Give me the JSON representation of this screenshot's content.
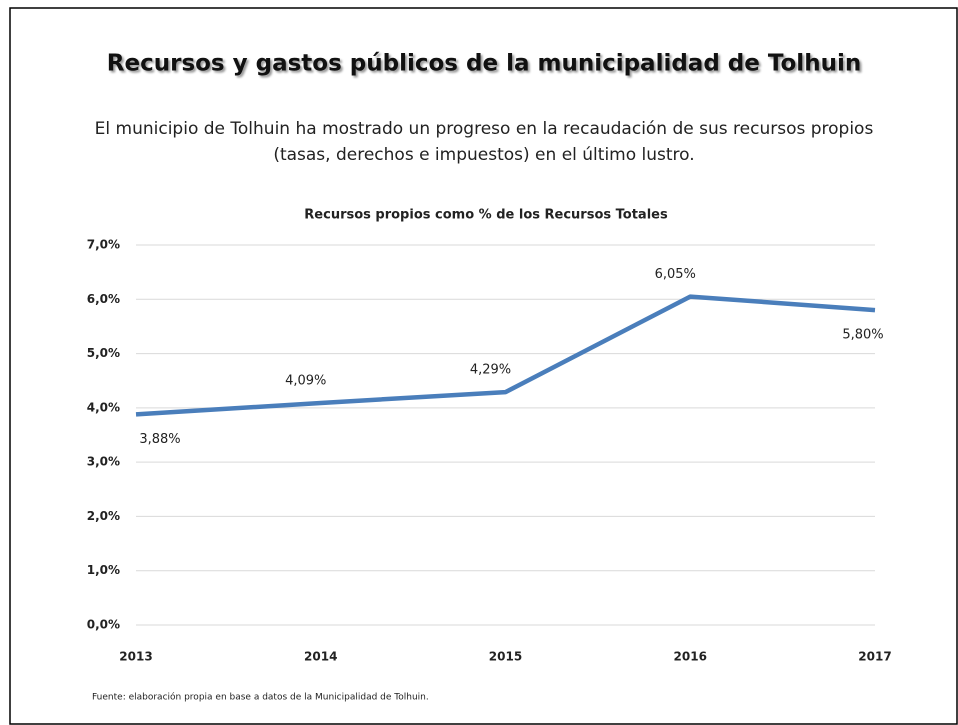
{
  "slide": {
    "title": "Recursos y gastos públicos de la municipalidad de Tolhuin",
    "subtitle": [
      "El municipio de Tolhuin ha mostrado un progreso en la recaudación de sus recursos propios",
      "(tasas, derechos e impuestos) en el último lustro."
    ],
    "source": "Fuente: elaboración propia en base a datos de la Municipalidad de Tolhuin."
  },
  "chart_data": {
    "type": "line",
    "title": "Recursos propios como % de los Recursos Totales",
    "categories": [
      "2013",
      "2014",
      "2015",
      "2016",
      "2017"
    ],
    "values": [
      3.88,
      4.09,
      4.29,
      6.05,
      5.8
    ],
    "value_labels": [
      "3,88%",
      "4,09%",
      "4,29%",
      "6,05%",
      "5,80%"
    ],
    "color": "#4a7ebb",
    "ylim": [
      0,
      7
    ],
    "yticks": [
      {
        "value": 0,
        "label": "0,0%"
      },
      {
        "value": 1,
        "label": "1,0%"
      },
      {
        "value": 2,
        "label": "2,0%"
      },
      {
        "value": 3,
        "label": "3,0%"
      },
      {
        "value": 4,
        "label": "4,0%"
      },
      {
        "value": 5,
        "label": "5,0%"
      },
      {
        "value": 6,
        "label": "6,0%"
      },
      {
        "value": 7,
        "label": "7,0%"
      }
    ],
    "grid": true
  }
}
